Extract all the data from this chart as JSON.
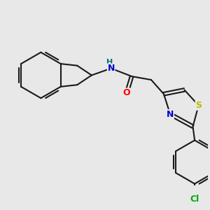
{
  "bg_color": "#e8e8e8",
  "bond_color": "#1a1a1a",
  "bond_width": 1.5,
  "atom_colors": {
    "N": "#0000cc",
    "O": "#ff0000",
    "S": "#bbbb00",
    "Cl": "#00aa00",
    "H": "#007070",
    "C": "#1a1a1a"
  },
  "font_size": 9
}
